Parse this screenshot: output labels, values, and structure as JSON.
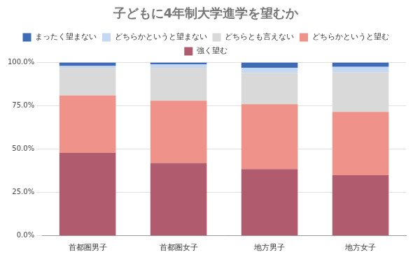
{
  "chart_data": {
    "type": "bar",
    "title": "子どもに4年制大学進学を望むか",
    "categories": [
      "首都圏男子",
      "首都圏女子",
      "地方男子",
      "地方女子"
    ],
    "stacked": true,
    "series": [
      {
        "name": "強く望む",
        "color": "#b05c6e",
        "values": [
          48,
          42,
          38.5,
          35
        ]
      },
      {
        "name": "どちらかというと望む",
        "color": "#ee928a",
        "values": [
          33,
          36,
          37.5,
          36.5
        ]
      },
      {
        "name": "どちらとも言えない",
        "color": "#d9d9d9",
        "values": [
          16,
          19,
          18,
          23
        ]
      },
      {
        "name": "どちらかというと望まない",
        "color": "#c5d8f1",
        "values": [
          1,
          2,
          3,
          3
        ]
      },
      {
        "name": "まったく望まない",
        "color": "#3d6bb5",
        "values": [
          2,
          1,
          3,
          2.5
        ]
      }
    ],
    "ylim": [
      0,
      100
    ],
    "yticks": [
      {
        "value": 0,
        "label": "0.0%"
      },
      {
        "value": 25,
        "label": "25.0%"
      },
      {
        "value": 50,
        "label": "50.0%"
      },
      {
        "value": 75,
        "label": "75.0%"
      },
      {
        "value": 100,
        "label": "100.0%"
      }
    ],
    "grid": true,
    "legend": "top"
  }
}
